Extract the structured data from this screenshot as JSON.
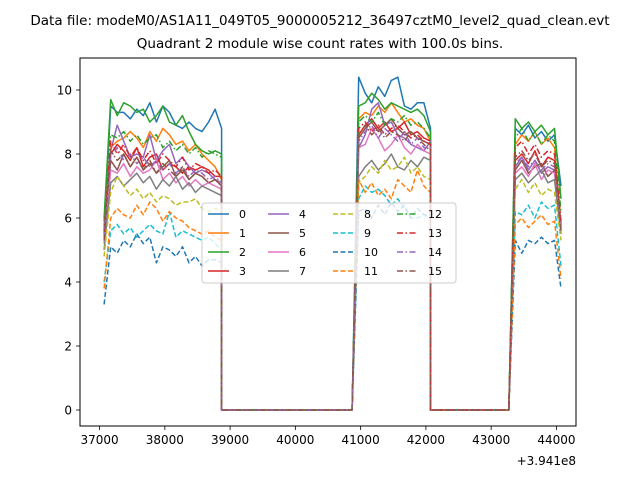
{
  "figure": {
    "suptitle": "Data file: modeM0/AS1A11_049T05_9000005212_36497cztM0_level2_quad_clean.evt",
    "title": "Quadrant 2 module wise count rates with 100.0s bins."
  },
  "chart_data": {
    "type": "line",
    "title": "Quadrant 2 module wise count rates with 100.0s bins.",
    "xlabel": "",
    "ylabel": "",
    "x_offset_label": "+3.941e8",
    "xlim": [
      36700,
      44300
    ],
    "ylim": [
      -0.5,
      11.0
    ],
    "xticks": [
      37000,
      38000,
      39000,
      40000,
      41000,
      42000,
      43000,
      44000
    ],
    "xtick_labels": [
      "37000",
      "38000",
      "39000",
      "40000",
      "41000",
      "42000",
      "43000",
      "44000"
    ],
    "yticks": [
      0,
      2,
      4,
      6,
      8,
      10
    ],
    "ytick_labels": [
      "0",
      "2",
      "4",
      "6",
      "8",
      "10"
    ],
    "grid": false,
    "legend": {
      "placement": "center",
      "columns": 4
    },
    "segments": [
      {
        "x_start": 37070,
        "n": 18,
        "step": 100
      },
      {
        "x_start": 40970,
        "n": 11,
        "step": 100
      },
      {
        "x_start": 43370,
        "n": 7,
        "step": 100
      }
    ],
    "zero_gaps": [
      [
        38870,
        38970,
        40770,
        40870
      ],
      [
        42070,
        42170,
        43170,
        43270
      ]
    ],
    "series": [
      {
        "name": "0",
        "color": "#1f77b4",
        "style": "solid",
        "seg_values": [
          [
            5.6,
            9.5,
            9.3,
            9.3,
            9.1,
            9.4,
            9.2,
            9.6,
            9.0,
            9.5,
            9.3,
            8.9,
            8.8,
            9.0,
            8.8,
            8.7,
            9.0,
            9.4
          ],
          [
            10.4,
            9.9,
            9.6,
            10.1,
            9.8,
            10.3,
            10.4,
            9.5,
            9.4,
            9.6,
            9.6
          ],
          [
            8.8,
            8.6,
            8.9,
            8.5,
            8.7,
            8.4,
            8.6
          ]
        ],
        "ends": [
          8.8,
          8.8,
          7.0
        ]
      },
      {
        "name": "1",
        "color": "#ff7f0e",
        "style": "solid",
        "seg_values": [
          [
            5.9,
            8.2,
            8.4,
            8.5,
            8.7,
            8.5,
            8.2,
            8.7,
            8.4,
            8.8,
            8.6,
            8.3,
            8.4,
            8.1,
            8.3,
            8.0,
            7.8,
            7.6
          ],
          [
            9.1,
            9.3,
            9.2,
            9.5,
            9.3,
            9.6,
            9.3,
            9.0,
            9.1,
            8.9,
            8.8
          ],
          [
            8.3,
            8.6,
            8.4,
            8.7,
            8.3,
            8.5,
            8.2
          ]
        ],
        "ends": [
          7.2,
          8.4,
          5.8
        ]
      },
      {
        "name": "2",
        "color": "#2ca02c",
        "style": "solid",
        "seg_values": [
          [
            6.0,
            9.7,
            9.2,
            9.6,
            9.5,
            9.3,
            9.4,
            9.0,
            9.2,
            9.5,
            9.0,
            8.9,
            9.2,
            8.7,
            8.3,
            8.1,
            8.0,
            8.1
          ],
          [
            9.5,
            9.6,
            9.9,
            9.7,
            9.4,
            9.6,
            9.5,
            9.4,
            9.3,
            9.4,
            9.2
          ],
          [
            9.1,
            8.8,
            9.0,
            8.7,
            8.9,
            8.6,
            8.8
          ]
        ],
        "ends": [
          8.0,
          8.7,
          6.6
        ]
      },
      {
        "name": "3",
        "color": "#d62728",
        "style": "solid",
        "seg_values": [
          [
            5.7,
            8.0,
            8.3,
            8.1,
            7.8,
            8.2,
            7.6,
            7.9,
            8.0,
            7.5,
            7.7,
            7.6,
            7.4,
            7.6,
            7.5,
            7.6,
            7.5,
            7.3
          ],
          [
            8.6,
            8.9,
            9.1,
            8.8,
            9.0,
            8.7,
            8.8,
            9.0,
            8.6,
            8.7,
            8.5
          ],
          [
            7.8,
            8.0,
            7.7,
            8.1,
            7.6,
            7.9,
            7.8
          ]
        ],
        "ends": [
          7.3,
          8.4,
          5.8
        ]
      },
      {
        "name": "4",
        "color": "#9467bd",
        "style": "solid",
        "seg_values": [
          [
            5.6,
            8.1,
            8.9,
            8.4,
            7.9,
            8.0,
            7.9,
            8.6,
            7.8,
            8.1,
            8.3,
            7.7,
            7.9,
            7.6,
            7.4,
            7.5,
            7.4,
            7.2
          ],
          [
            8.2,
            8.6,
            9.4,
            9.6,
            8.9,
            9.0,
            8.6,
            8.5,
            8.3,
            8.2,
            8.1
          ],
          [
            7.6,
            7.9,
            7.5,
            7.8,
            7.4,
            7.6,
            7.5
          ]
        ],
        "ends": [
          7.1,
          8.4,
          5.7
        ]
      },
      {
        "name": "5",
        "color": "#8c564b",
        "style": "solid",
        "seg_values": [
          [
            5.2,
            7.8,
            7.5,
            8.0,
            7.6,
            7.9,
            7.5,
            7.7,
            7.4,
            7.6,
            7.8,
            7.3,
            7.5,
            7.2,
            7.4,
            7.3,
            7.1,
            7.2
          ],
          [
            8.5,
            8.8,
            9.0,
            8.7,
            8.9,
            9.1,
            8.8,
            8.6,
            8.7,
            8.5,
            8.4
          ],
          [
            7.5,
            7.8,
            7.4,
            7.6,
            7.7,
            7.3,
            7.5
          ]
        ],
        "ends": [
          7.0,
          8.3,
          5.6
        ]
      },
      {
        "name": "6",
        "color": "#e377c2",
        "style": "solid",
        "seg_values": [
          [
            5.2,
            7.5,
            7.4,
            7.7,
            7.3,
            7.6,
            7.4,
            7.5,
            7.8,
            7.2,
            7.4,
            7.1,
            7.3,
            7.0,
            7.2,
            7.0,
            7.1,
            7.0
          ],
          [
            8.2,
            8.3,
            8.8,
            8.5,
            8.1,
            8.3,
            8.6,
            8.2,
            8.0,
            8.3,
            8.1
          ],
          [
            7.4,
            7.6,
            7.3,
            7.7,
            7.2,
            7.5,
            7.4
          ]
        ],
        "ends": [
          6.9,
          8.0,
          5.6
        ]
      },
      {
        "name": "7",
        "color": "#7f7f7f",
        "style": "solid",
        "seg_values": [
          [
            5.0,
            7.1,
            7.3,
            7.0,
            7.2,
            7.4,
            7.1,
            7.3,
            6.9,
            7.2,
            7.0,
            7.3,
            6.9,
            7.1,
            6.8,
            7.0,
            6.9,
            6.8
          ],
          [
            7.3,
            7.6,
            7.8,
            7.5,
            7.7,
            8.0,
            7.6,
            7.5,
            7.8,
            7.6,
            7.9
          ],
          [
            7.2,
            7.4,
            7.1,
            7.3,
            7.5,
            7.1,
            7.2
          ]
        ],
        "ends": [
          6.7,
          7.8,
          5.5
        ]
      },
      {
        "name": "8",
        "color": "#bcbd22",
        "style": "dashed",
        "seg_values": [
          [
            4.8,
            6.8,
            7.3,
            7.0,
            6.7,
            6.9,
            6.6,
            6.8,
            6.5,
            6.7,
            6.6,
            6.4,
            6.5,
            6.5,
            6.6,
            6.3,
            6.2,
            6.3
          ],
          [
            7.1,
            7.3,
            7.6,
            7.4,
            7.8,
            7.5,
            7.6,
            7.9,
            7.4,
            7.6,
            7.3
          ],
          [
            6.9,
            7.2,
            6.8,
            7.1,
            6.7,
            6.9,
            6.8
          ]
        ],
        "ends": [
          6.2,
          7.2,
          5.3
        ]
      },
      {
        "name": "9",
        "color": "#17becf",
        "style": "dashed",
        "seg_values": [
          [
            4.0,
            5.6,
            5.8,
            5.5,
            5.7,
            5.4,
            5.6,
            5.8,
            5.6,
            5.5,
            6.2,
            5.4,
            5.6,
            5.5,
            5.4,
            5.3,
            5.4,
            5.2
          ],
          [
            6.6,
            7.0,
            6.8,
            6.9,
            6.7,
            6.4,
            6.6,
            6.3,
            6.0,
            6.0,
            6.1
          ],
          [
            6.2,
            6.1,
            6.4,
            6.0,
            6.5,
            6.3,
            6.4
          ]
        ],
        "ends": [
          5.0,
          6.0,
          4.5
        ]
      },
      {
        "name": "10",
        "color": "#1f77b4",
        "style": "dashed",
        "seg_values": [
          [
            3.3,
            5.1,
            4.9,
            5.3,
            5.1,
            5.5,
            5.2,
            5.4,
            4.6,
            5.1,
            5.0,
            4.8,
            5.1,
            4.6,
            4.8,
            4.5,
            4.7,
            4.7
          ],
          [
            6.2,
            6.3,
            6.0,
            6.4,
            6.1,
            6.5,
            6.2,
            6.4,
            6.0,
            6.3,
            6.1
          ],
          [
            5.3,
            4.9,
            5.3,
            5.2,
            5.4,
            5.2,
            5.3
          ]
        ],
        "ends": [
          4.6,
          6.1,
          3.8
        ]
      },
      {
        "name": "11",
        "color": "#ff7f0e",
        "style": "dashed",
        "seg_values": [
          [
            3.8,
            6.0,
            6.3,
            6.1,
            6.0,
            6.4,
            6.1,
            6.5,
            6.3,
            5.9,
            6.2,
            6.0,
            5.9,
            5.7,
            5.6,
            5.5,
            5.6,
            5.4
          ],
          [
            7.2,
            6.8,
            7.1,
            6.7,
            6.9,
            6.6,
            7.2,
            7.0,
            6.8,
            7.5,
            7.0
          ],
          [
            5.8,
            6.0,
            5.7,
            5.9,
            6.1,
            5.8,
            5.9
          ]
        ],
        "ends": [
          5.3,
          6.8,
          4.1
        ]
      },
      {
        "name": "12",
        "color": "#2ca02c",
        "style": "dashdot",
        "seg_values": [
          [
            5.9,
            8.6,
            8.5,
            8.7,
            8.4,
            8.6,
            8.3,
            8.5,
            8.6,
            8.2,
            8.4,
            8.1,
            8.3,
            8.0,
            8.2,
            7.9,
            8.1,
            8.0
          ],
          [
            9.0,
            9.2,
            9.0,
            9.3,
            8.9,
            9.1,
            9.0,
            9.2,
            8.9,
            9.0,
            8.8
          ],
          [
            8.5,
            8.8,
            8.4,
            8.7,
            8.3,
            8.6,
            8.4
          ]
        ],
        "ends": [
          7.9,
          8.5,
          6.2
        ]
      },
      {
        "name": "13",
        "color": "#d62728",
        "style": "dashdot",
        "seg_values": [
          [
            5.5,
            8.4,
            8.0,
            8.3,
            7.9,
            8.2,
            7.8,
            8.1,
            7.7,
            8.0,
            7.8,
            7.6,
            7.9,
            7.5,
            7.7,
            7.6,
            7.4,
            7.5
          ],
          [
            8.8,
            9.0,
            8.7,
            8.9,
            8.6,
            8.8,
            8.9,
            8.7,
            8.5,
            8.6,
            8.4
          ],
          [
            8.2,
            8.4,
            8.0,
            8.3,
            7.9,
            8.1,
            8.0
          ]
        ],
        "ends": [
          7.3,
          8.3,
          5.9
        ]
      },
      {
        "name": "14",
        "color": "#9467bd",
        "style": "dashdot",
        "seg_values": [
          [
            5.4,
            7.9,
            8.2,
            7.8,
            8.0,
            7.7,
            7.9,
            7.6,
            7.8,
            7.5,
            7.7,
            7.4,
            7.6,
            7.3,
            7.5,
            7.4,
            7.2,
            7.3
          ],
          [
            8.4,
            8.7,
            8.9,
            8.5,
            8.8,
            8.6,
            8.4,
            8.7,
            8.3,
            8.5,
            8.2
          ],
          [
            7.7,
            7.9,
            7.6,
            7.8,
            7.5,
            7.7,
            7.6
          ]
        ],
        "ends": [
          7.1,
          8.2,
          5.7
        ]
      },
      {
        "name": "15",
        "color": "#8c564b",
        "style": "dashdot",
        "seg_values": [
          [
            5.3,
            8.1,
            7.8,
            8.0,
            7.6,
            7.9,
            7.5,
            7.8,
            7.4,
            7.7,
            7.5,
            7.3,
            7.6,
            7.2,
            7.4,
            7.3,
            7.1,
            7.2
          ],
          [
            8.6,
            8.9,
            8.6,
            8.8,
            8.5,
            8.7,
            8.6,
            8.4,
            8.7,
            8.5,
            8.3
          ],
          [
            7.9,
            8.1,
            7.8,
            8.0,
            7.6,
            7.8,
            7.7
          ]
        ],
        "ends": [
          7.0,
          8.1,
          5.6
        ]
      }
    ]
  }
}
